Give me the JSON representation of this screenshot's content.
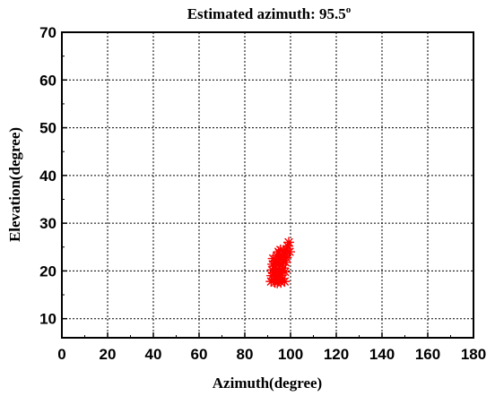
{
  "chart_data": {
    "type": "scatter",
    "title": "Estimated azimuth: 95.5",
    "title_superscript": "o",
    "xlabel": "Azimuth(degree)",
    "ylabel": "Elevation(degree)",
    "xlim": [
      0,
      180
    ],
    "ylim": [
      6,
      70
    ],
    "xticks": [
      "0",
      "20",
      "40",
      "60",
      "80",
      "100",
      "120",
      "140",
      "160",
      "180"
    ],
    "yticks": [
      "10",
      "20",
      "30",
      "40",
      "50",
      "60",
      "70"
    ],
    "grid": true,
    "marker": "asterisk",
    "color": "#ff0000",
    "points": [
      {
        "x": 91.5,
        "y": 17.8
      },
      {
        "x": 91.8,
        "y": 19.0
      },
      {
        "x": 92.0,
        "y": 20.2
      },
      {
        "x": 92.2,
        "y": 21.4
      },
      {
        "x": 92.4,
        "y": 22.6
      },
      {
        "x": 92.5,
        "y": 18.2
      },
      {
        "x": 92.8,
        "y": 19.6
      },
      {
        "x": 93.0,
        "y": 21.0
      },
      {
        "x": 93.2,
        "y": 17.6
      },
      {
        "x": 93.4,
        "y": 22.0
      },
      {
        "x": 93.6,
        "y": 18.8
      },
      {
        "x": 93.8,
        "y": 20.4
      },
      {
        "x": 94.0,
        "y": 23.2
      },
      {
        "x": 94.2,
        "y": 17.5
      },
      {
        "x": 94.4,
        "y": 19.2
      },
      {
        "x": 94.6,
        "y": 21.6
      },
      {
        "x": 94.8,
        "y": 24.0
      },
      {
        "x": 95.0,
        "y": 18.0
      },
      {
        "x": 95.2,
        "y": 20.0
      },
      {
        "x": 95.4,
        "y": 22.4
      },
      {
        "x": 95.6,
        "y": 24.4
      },
      {
        "x": 95.8,
        "y": 17.6
      },
      {
        "x": 96.0,
        "y": 19.6
      },
      {
        "x": 96.2,
        "y": 21.2
      },
      {
        "x": 96.4,
        "y": 23.0
      },
      {
        "x": 96.6,
        "y": 18.4
      },
      {
        "x": 96.8,
        "y": 20.6
      },
      {
        "x": 97.0,
        "y": 22.2
      },
      {
        "x": 97.2,
        "y": 24.2
      },
      {
        "x": 97.4,
        "y": 17.8
      },
      {
        "x": 97.6,
        "y": 19.8
      },
      {
        "x": 97.8,
        "y": 21.8
      },
      {
        "x": 98.0,
        "y": 23.6
      },
      {
        "x": 98.2,
        "y": 22.8
      },
      {
        "x": 98.4,
        "y": 24.6
      },
      {
        "x": 98.8,
        "y": 25.2
      },
      {
        "x": 99.2,
        "y": 26.0
      },
      {
        "x": 99.6,
        "y": 24.0
      },
      {
        "x": 95.5,
        "y": 23.0
      },
      {
        "x": 94.0,
        "y": 19.0
      }
    ]
  }
}
